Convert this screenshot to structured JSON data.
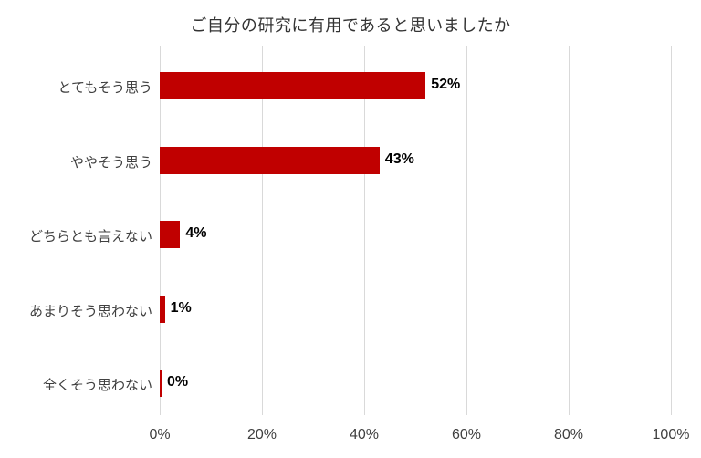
{
  "chart_data": {
    "type": "bar",
    "orientation": "horizontal",
    "title": "ご自分の研究に有用であると思いましたか",
    "categories": [
      "とてもそう思う",
      "ややそう思う",
      "どちらとも言えない",
      "あまりそう思わない",
      "全くそう思わない"
    ],
    "values": [
      52,
      43,
      4,
      1,
      0
    ],
    "value_labels": [
      "52%",
      "43%",
      "4%",
      "1%",
      "0%"
    ],
    "x_tick_labels": [
      "0%",
      "20%",
      "40%",
      "60%",
      "80%",
      "100%"
    ],
    "x_tick_values": [
      0,
      20,
      40,
      60,
      80,
      100
    ],
    "xlim": [
      0,
      100
    ],
    "xlabel": "",
    "ylabel": "",
    "grid": true,
    "legend": false,
    "colors": {
      "bar": "#C00000",
      "gridline": "#D9D9D9",
      "axis_text": "#404040",
      "data_label": "#000000",
      "title_text": "#333333",
      "background": "#FFFFFF"
    }
  }
}
